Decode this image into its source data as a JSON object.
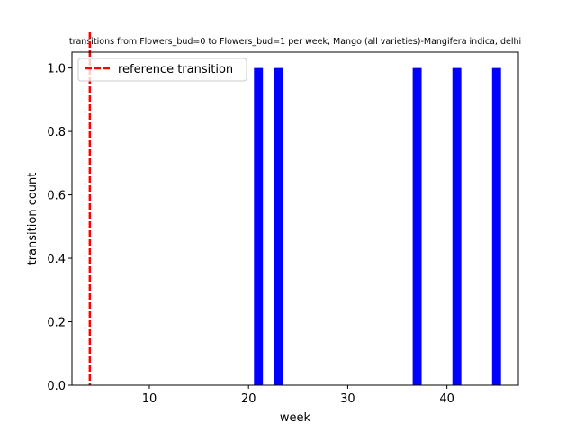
{
  "chart_data": {
    "type": "bar",
    "title": "transitions from Flowers_bud=0 to Flowers_bud=1 per week, Mango (all varieties)-Mangifera indica, delhi",
    "xlabel": "week",
    "ylabel": "transition count",
    "x": [
      21,
      23,
      37,
      41,
      45
    ],
    "values": [
      1,
      1,
      1,
      1,
      1
    ],
    "xlim": [
      2.2,
      47.2
    ],
    "ylim": [
      0,
      1.05
    ],
    "xticks": [
      10,
      20,
      30,
      40
    ],
    "yticks": [
      0.0,
      0.2,
      0.4,
      0.6,
      0.8,
      1.0
    ],
    "xtick_labels": [
      "10",
      "20",
      "30",
      "40"
    ],
    "ytick_labels": [
      "0.0",
      "0.2",
      "0.4",
      "0.6",
      "0.8",
      "1.0"
    ],
    "bar_color": "#0000ff",
    "reference_line": {
      "x": 4,
      "label": "reference transition",
      "color": "#ff0000",
      "style": "dashed"
    },
    "legend_position": "upper-left",
    "grid": false
  }
}
